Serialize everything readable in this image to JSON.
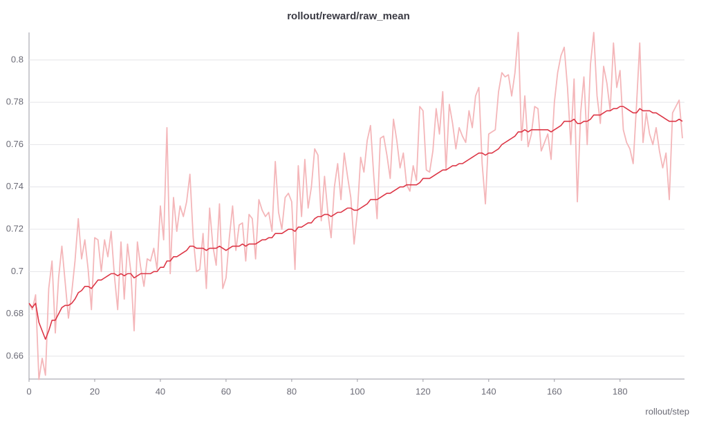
{
  "chart_data": {
    "type": "line",
    "title": "rollout/reward/raw_mean",
    "x_label": "rollout/step",
    "x": [
      0,
      1,
      2,
      3,
      4,
      5,
      6,
      7,
      8,
      9,
      10,
      11,
      12,
      13,
      14,
      15,
      16,
      17,
      18,
      19,
      20,
      21,
      22,
      23,
      24,
      25,
      26,
      27,
      28,
      29,
      30,
      31,
      32,
      33,
      34,
      35,
      36,
      37,
      38,
      39,
      40,
      41,
      42,
      43,
      44,
      45,
      46,
      47,
      48,
      49,
      50,
      51,
      52,
      53,
      54,
      55,
      56,
      57,
      58,
      59,
      60,
      61,
      62,
      63,
      64,
      65,
      66,
      67,
      68,
      69,
      70,
      71,
      72,
      73,
      74,
      75,
      76,
      77,
      78,
      79,
      80,
      81,
      82,
      83,
      84,
      85,
      86,
      87,
      88,
      89,
      90,
      91,
      92,
      93,
      94,
      95,
      96,
      97,
      98,
      99,
      100,
      101,
      102,
      103,
      104,
      105,
      106,
      107,
      108,
      109,
      110,
      111,
      112,
      113,
      114,
      115,
      116,
      117,
      118,
      119,
      120,
      121,
      122,
      123,
      124,
      125,
      126,
      127,
      128,
      129,
      130,
      131,
      132,
      133,
      134,
      135,
      136,
      137,
      138,
      139,
      140,
      141,
      142,
      143,
      144,
      145,
      146,
      147,
      148,
      149,
      150,
      151,
      152,
      153,
      154,
      155,
      156,
      157,
      158,
      159,
      160,
      161,
      162,
      163,
      164,
      165,
      166,
      167,
      168,
      169,
      170,
      171,
      172,
      173,
      174,
      175,
      176,
      177,
      178,
      179,
      180,
      181,
      182,
      183,
      184,
      185,
      186,
      187,
      188,
      189,
      190,
      191,
      192,
      193,
      194,
      195,
      196,
      197,
      198,
      199
    ],
    "series": [
      {
        "color": "#f4b6b9",
        "values": [
          0.685,
          0.682,
          0.689,
          0.649,
          0.659,
          0.651,
          0.692,
          0.705,
          0.671,
          0.697,
          0.712,
          0.695,
          0.678,
          0.69,
          0.705,
          0.725,
          0.706,
          0.715,
          0.701,
          0.682,
          0.716,
          0.715,
          0.7,
          0.715,
          0.707,
          0.719,
          0.698,
          0.682,
          0.714,
          0.687,
          0.713,
          0.7,
          0.672,
          0.714,
          0.702,
          0.693,
          0.706,
          0.705,
          0.711,
          0.701,
          0.731,
          0.715,
          0.768,
          0.699,
          0.735,
          0.719,
          0.731,
          0.726,
          0.733,
          0.746,
          0.716,
          0.7,
          0.701,
          0.718,
          0.692,
          0.73,
          0.712,
          0.703,
          0.732,
          0.692,
          0.697,
          0.716,
          0.731,
          0.71,
          0.722,
          0.723,
          0.705,
          0.727,
          0.725,
          0.706,
          0.734,
          0.729,
          0.726,
          0.728,
          0.719,
          0.752,
          0.728,
          0.72,
          0.735,
          0.737,
          0.733,
          0.701,
          0.75,
          0.726,
          0.753,
          0.73,
          0.74,
          0.758,
          0.755,
          0.724,
          0.745,
          0.728,
          0.716,
          0.74,
          0.751,
          0.734,
          0.756,
          0.745,
          0.735,
          0.713,
          0.728,
          0.754,
          0.747,
          0.762,
          0.769,
          0.745,
          0.725,
          0.763,
          0.764,
          0.755,
          0.744,
          0.772,
          0.762,
          0.749,
          0.756,
          0.741,
          0.738,
          0.75,
          0.743,
          0.778,
          0.776,
          0.748,
          0.747,
          0.757,
          0.777,
          0.765,
          0.785,
          0.748,
          0.779,
          0.77,
          0.758,
          0.768,
          0.764,
          0.761,
          0.776,
          0.768,
          0.783,
          0.787,
          0.751,
          0.732,
          0.765,
          0.766,
          0.767,
          0.785,
          0.794,
          0.792,
          0.793,
          0.783,
          0.794,
          0.813,
          0.762,
          0.783,
          0.759,
          0.765,
          0.778,
          0.777,
          0.757,
          0.761,
          0.765,
          0.753,
          0.78,
          0.794,
          0.802,
          0.806,
          0.787,
          0.76,
          0.791,
          0.733,
          0.775,
          0.792,
          0.76,
          0.798,
          0.813,
          0.783,
          0.77,
          0.797,
          0.789,
          0.776,
          0.808,
          0.787,
          0.795,
          0.767,
          0.761,
          0.758,
          0.751,
          0.778,
          0.808,
          0.761,
          0.775,
          0.765,
          0.76,
          0.768,
          0.757,
          0.749,
          0.756,
          0.734,
          0.775,
          0.778,
          0.781,
          0.763
        ]
      },
      {
        "color": "#dc3545",
        "values": [
          0.685,
          0.683,
          0.685,
          0.676,
          0.672,
          0.668,
          0.672,
          0.677,
          0.677,
          0.68,
          0.683,
          0.684,
          0.684,
          0.685,
          0.687,
          0.69,
          0.691,
          0.693,
          0.693,
          0.692,
          0.694,
          0.696,
          0.696,
          0.697,
          0.698,
          0.699,
          0.699,
          0.698,
          0.699,
          0.698,
          0.699,
          0.699,
          0.697,
          0.698,
          0.699,
          0.699,
          0.699,
          0.699,
          0.7,
          0.7,
          0.702,
          0.702,
          0.705,
          0.705,
          0.707,
          0.707,
          0.708,
          0.709,
          0.71,
          0.712,
          0.712,
          0.711,
          0.711,
          0.711,
          0.71,
          0.711,
          0.711,
          0.711,
          0.712,
          0.711,
          0.71,
          0.711,
          0.712,
          0.712,
          0.712,
          0.713,
          0.712,
          0.713,
          0.713,
          0.713,
          0.714,
          0.715,
          0.715,
          0.716,
          0.716,
          0.718,
          0.718,
          0.718,
          0.719,
          0.72,
          0.72,
          0.719,
          0.721,
          0.721,
          0.722,
          0.723,
          0.723,
          0.725,
          0.726,
          0.726,
          0.727,
          0.727,
          0.726,
          0.727,
          0.728,
          0.728,
          0.729,
          0.73,
          0.73,
          0.729,
          0.729,
          0.73,
          0.731,
          0.732,
          0.734,
          0.734,
          0.734,
          0.735,
          0.736,
          0.737,
          0.737,
          0.738,
          0.739,
          0.74,
          0.74,
          0.741,
          0.741,
          0.741,
          0.741,
          0.742,
          0.744,
          0.744,
          0.744,
          0.745,
          0.746,
          0.747,
          0.748,
          0.748,
          0.749,
          0.75,
          0.75,
          0.751,
          0.751,
          0.752,
          0.753,
          0.754,
          0.755,
          0.756,
          0.756,
          0.755,
          0.756,
          0.756,
          0.757,
          0.758,
          0.76,
          0.761,
          0.762,
          0.763,
          0.764,
          0.766,
          0.766,
          0.767,
          0.766,
          0.767,
          0.767,
          0.767,
          0.767,
          0.767,
          0.767,
          0.766,
          0.767,
          0.768,
          0.769,
          0.771,
          0.771,
          0.771,
          0.772,
          0.77,
          0.77,
          0.771,
          0.771,
          0.772,
          0.774,
          0.774,
          0.774,
          0.775,
          0.776,
          0.776,
          0.777,
          0.777,
          0.778,
          0.778,
          0.777,
          0.776,
          0.775,
          0.775,
          0.777,
          0.776,
          0.776,
          0.776,
          0.775,
          0.775,
          0.774,
          0.773,
          0.772,
          0.771,
          0.771,
          0.771,
          0.772,
          0.771
        ]
      }
    ],
    "xlim": [
      0,
      199
    ],
    "xticks": [
      0,
      20,
      40,
      60,
      80,
      100,
      120,
      140,
      160,
      180
    ],
    "ylim": [
      0.6492,
      0.813
    ],
    "yticks": [
      0.66,
      0.68,
      0.7,
      0.72,
      0.74,
      0.76,
      0.78,
      0.8
    ],
    "grid": true
  }
}
